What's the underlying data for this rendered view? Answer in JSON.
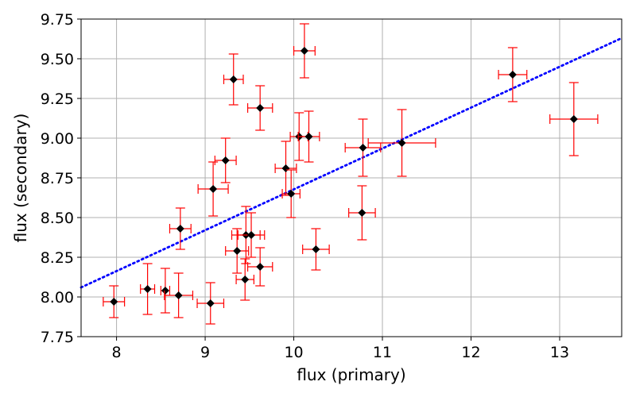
{
  "chart_data": {
    "type": "scatter",
    "xlabel": "flux (primary)",
    "ylabel": "flux (secondary)",
    "xlim": [
      7.6,
      13.7
    ],
    "ylim": [
      7.75,
      9.75
    ],
    "xticks": [
      8,
      9,
      10,
      11,
      12,
      13
    ],
    "yticks": [
      7.75,
      8.0,
      8.25,
      8.5,
      8.75,
      9.0,
      9.25,
      9.5,
      9.75
    ],
    "xtick_labels": [
      "8",
      "9",
      "10",
      "11",
      "12",
      "13"
    ],
    "ytick_labels": [
      "7.75",
      "8.00",
      "8.25",
      "8.50",
      "8.75",
      "9.00",
      "9.25",
      "9.50",
      "9.75"
    ],
    "grid": true,
    "colors": {
      "marker": "#000000",
      "errorbar": "#ff0000",
      "fit_line": "#0000ff"
    },
    "points": [
      {
        "x": 7.97,
        "y": 7.97,
        "xerr": 0.12,
        "yerr": 0.1
      },
      {
        "x": 8.35,
        "y": 8.05,
        "xerr": 0.08,
        "yerr": 0.16
      },
      {
        "x": 8.55,
        "y": 8.04,
        "xerr": 0.05,
        "yerr": 0.14
      },
      {
        "x": 8.7,
        "y": 8.01,
        "xerr": 0.16,
        "yerr": 0.14
      },
      {
        "x": 8.72,
        "y": 8.43,
        "xerr": 0.12,
        "yerr": 0.13
      },
      {
        "x": 9.06,
        "y": 7.96,
        "xerr": 0.15,
        "yerr": 0.13
      },
      {
        "x": 9.09,
        "y": 8.68,
        "xerr": 0.17,
        "yerr": 0.17
      },
      {
        "x": 9.23,
        "y": 8.86,
        "xerr": 0.12,
        "yerr": 0.14
      },
      {
        "x": 9.32,
        "y": 9.37,
        "xerr": 0.11,
        "yerr": 0.16
      },
      {
        "x": 9.36,
        "y": 8.29,
        "xerr": 0.13,
        "yerr": 0.14
      },
      {
        "x": 9.45,
        "y": 8.11,
        "xerr": 0.1,
        "yerr": 0.13
      },
      {
        "x": 9.46,
        "y": 8.39,
        "xerr": 0.16,
        "yerr": 0.18
      },
      {
        "x": 9.52,
        "y": 8.39,
        "xerr": 0.15,
        "yerr": 0.14
      },
      {
        "x": 9.62,
        "y": 8.19,
        "xerr": 0.14,
        "yerr": 0.12
      },
      {
        "x": 9.62,
        "y": 9.19,
        "xerr": 0.14,
        "yerr": 0.14
      },
      {
        "x": 9.91,
        "y": 8.81,
        "xerr": 0.12,
        "yerr": 0.17
      },
      {
        "x": 9.97,
        "y": 8.65,
        "xerr": 0.1,
        "yerr": 0.15
      },
      {
        "x": 10.06,
        "y": 9.01,
        "xerr": 0.1,
        "yerr": 0.15
      },
      {
        "x": 10.12,
        "y": 9.55,
        "xerr": 0.12,
        "yerr": 0.17
      },
      {
        "x": 10.17,
        "y": 9.01,
        "xerr": 0.12,
        "yerr": 0.16
      },
      {
        "x": 10.25,
        "y": 8.3,
        "xerr": 0.15,
        "yerr": 0.13
      },
      {
        "x": 10.77,
        "y": 8.53,
        "xerr": 0.15,
        "yerr": 0.17
      },
      {
        "x": 10.78,
        "y": 8.94,
        "xerr": 0.2,
        "yerr": 0.18
      },
      {
        "x": 11.22,
        "y": 8.97,
        "xerr": 0.38,
        "yerr": 0.21
      },
      {
        "x": 12.47,
        "y": 9.4,
        "xerr": 0.16,
        "yerr": 0.17
      },
      {
        "x": 13.16,
        "y": 9.12,
        "xerr": 0.27,
        "yerr": 0.23
      }
    ],
    "fit_line": {
      "x": [
        7.6,
        13.7
      ],
      "y": [
        8.06,
        9.63
      ]
    }
  }
}
